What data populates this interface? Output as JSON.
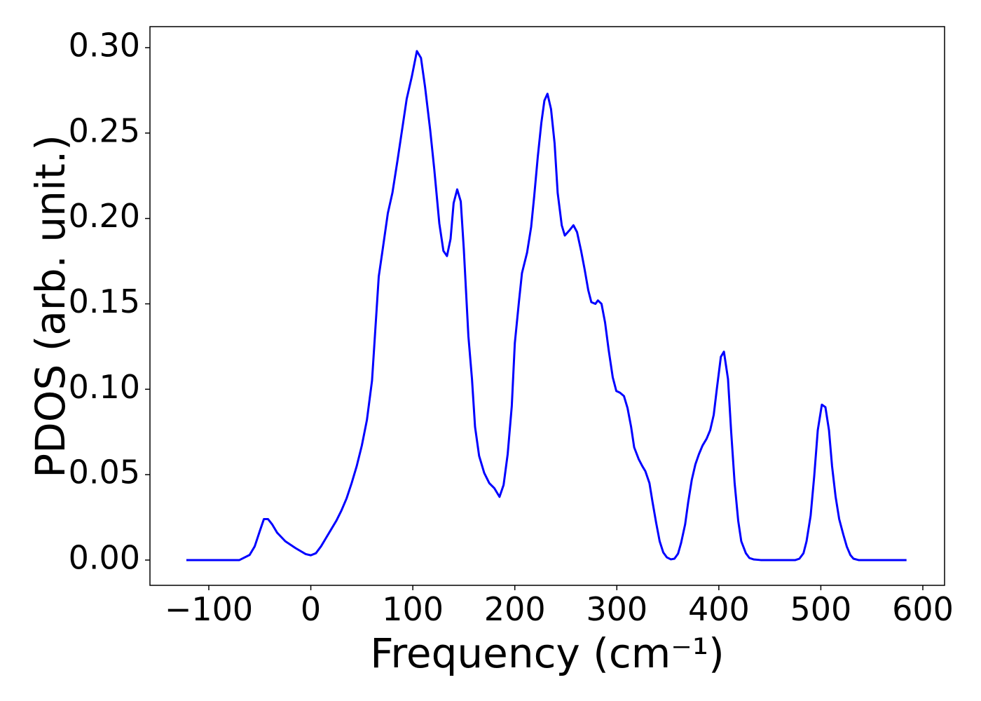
{
  "chart_data": {
    "type": "line",
    "xlabel": "Frequency (cm⁻¹)",
    "ylabel": "PDOS (arb. unit.)",
    "color": "#0000ff",
    "x": [
      -122,
      -70,
      -60,
      -55,
      -50,
      -46,
      -42,
      -38,
      -33,
      -25,
      -15,
      -5,
      0,
      5,
      10,
      15,
      20,
      25,
      30,
      35,
      40,
      45,
      50,
      55,
      60,
      66.6,
      70,
      75.5,
      80,
      85,
      90,
      94,
      99,
      104,
      108,
      112,
      117,
      121,
      126,
      130,
      133.5,
      137,
      140,
      143.5,
      147,
      150,
      154.5,
      158,
      161,
      165,
      170,
      175,
      180,
      185,
      189,
      193,
      197,
      200,
      204,
      207,
      212,
      216,
      219,
      222.5,
      226,
      229,
      232,
      235.5,
      239,
      242,
      246,
      249,
      253.5,
      257.5,
      261,
      265,
      268.5,
      272,
      275,
      279,
      281.5,
      285,
      288.5,
      292,
      296,
      299.5,
      303,
      307,
      310.5,
      314,
      317,
      321.5,
      325,
      328,
      332,
      335,
      338.5,
      342,
      345.5,
      349,
      353,
      356.5,
      360,
      363,
      367,
      370,
      373.5,
      377,
      380.5,
      384,
      388,
      391.5,
      395,
      398,
      402,
      405,
      409,
      412,
      415.5,
      419,
      422,
      426.5,
      430,
      434,
      441,
      475,
      479,
      483,
      486,
      490,
      493.5,
      497,
      501,
      504.5,
      508,
      511,
      514.5,
      518,
      522,
      525.5,
      529,
      532,
      537,
      584
    ],
    "values": [
      0,
      0,
      0.003,
      0.008,
      0.017,
      0.024,
      0.024,
      0.021,
      0.016,
      0.011,
      0.007,
      0.0035,
      0.0028,
      0.004,
      0.008,
      0.013,
      0.018,
      0.023,
      0.029,
      0.036,
      0.045,
      0.055,
      0.067,
      0.082,
      0.105,
      0.166,
      0.18,
      0.203,
      0.215,
      0.234,
      0.254,
      0.27,
      0.283,
      0.298,
      0.294,
      0.277,
      0.252,
      0.229,
      0.197,
      0.181,
      0.178,
      0.188,
      0.209,
      0.217,
      0.21,
      0.182,
      0.131,
      0.106,
      0.078,
      0.061,
      0.051,
      0.045,
      0.042,
      0.037,
      0.044,
      0.062,
      0.09,
      0.127,
      0.151,
      0.168,
      0.18,
      0.195,
      0.213,
      0.236,
      0.256,
      0.269,
      0.273,
      0.264,
      0.244,
      0.215,
      0.196,
      0.19,
      0.193,
      0.196,
      0.192,
      0.181,
      0.17,
      0.158,
      0.151,
      0.15,
      0.152,
      0.15,
      0.139,
      0.123,
      0.107,
      0.099,
      0.098,
      0.096,
      0.089,
      0.078,
      0.066,
      0.059,
      0.055,
      0.052,
      0.045,
      0.034,
      0.022,
      0.011,
      0.0045,
      0.0016,
      0.0004,
      0.0008,
      0.0037,
      0.01,
      0.021,
      0.034,
      0.047,
      0.056,
      0.062,
      0.067,
      0.071,
      0.076,
      0.085,
      0.1,
      0.119,
      0.122,
      0.106,
      0.076,
      0.045,
      0.023,
      0.011,
      0.004,
      0.0012,
      0.0004,
      0,
      0,
      0.0008,
      0.004,
      0.011,
      0.026,
      0.049,
      0.076,
      0.091,
      0.0895,
      0.076,
      0.055,
      0.037,
      0.024,
      0.015,
      0.0078,
      0.0029,
      0.0008,
      0,
      0
    ],
    "xlim": [
      -157.7,
      621.3
    ],
    "ylim": [
      -0.0148,
      0.3123
    ],
    "xticks": [
      {
        "value": -100,
        "label": "−100"
      },
      0,
      100,
      200,
      300,
      400,
      500,
      600
    ],
    "yticks": [
      {
        "value": 0,
        "label": "0.00"
      },
      {
        "value": 0.05,
        "label": "0.05"
      },
      {
        "value": 0.1,
        "label": "0.10"
      },
      {
        "value": 0.15,
        "label": "0.15"
      },
      {
        "value": 0.2,
        "label": "0.20"
      },
      {
        "value": 0.25,
        "label": "0.25"
      },
      {
        "value": 0.3,
        "label": "0.30"
      }
    ],
    "grid": false
  }
}
